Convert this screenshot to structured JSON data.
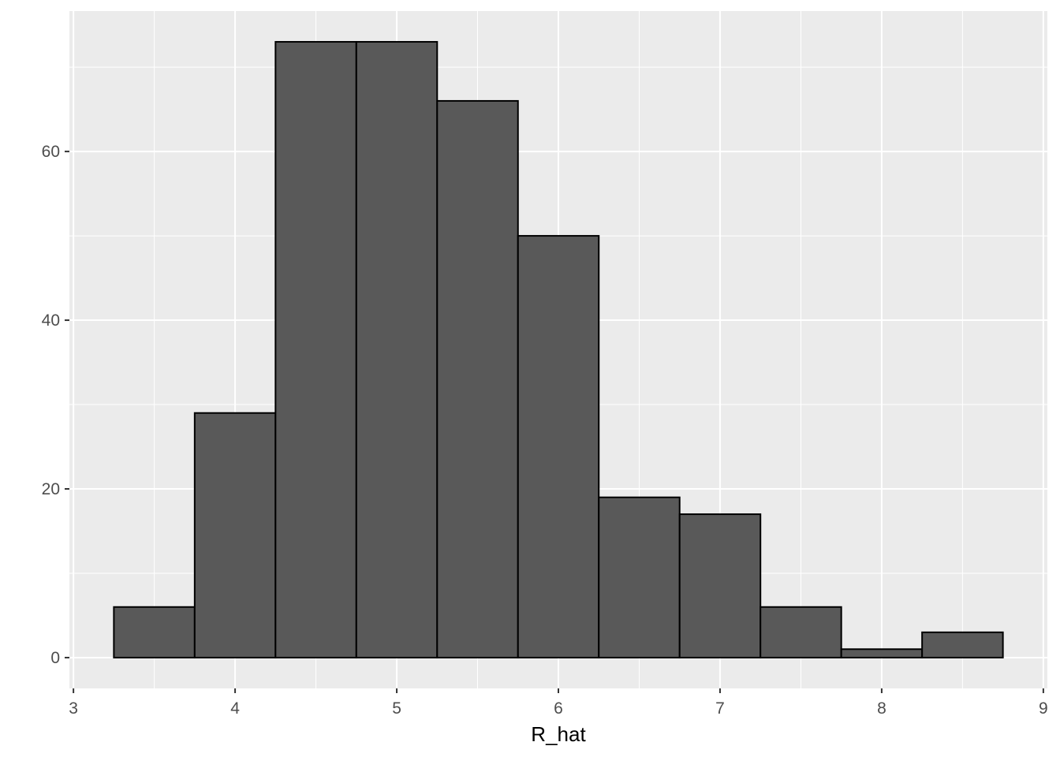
{
  "chart_data": {
    "type": "histogram",
    "x_label": "R_hat",
    "bins": [
      3.25,
      3.75,
      4.25,
      4.75,
      5.25,
      5.75,
      6.25,
      6.75,
      7.25,
      7.75,
      8.25,
      8.75
    ],
    "values": [
      6,
      29,
      73,
      73,
      66,
      50,
      19,
      17,
      6,
      1,
      3
    ],
    "color": "#595959",
    "edge_color": "#000000",
    "xlim": [
      2.975,
      9.025
    ],
    "xticks": [
      3,
      4,
      5,
      6,
      7,
      8,
      9
    ],
    "xminor": [
      3.5,
      4.5,
      5.5,
      6.5,
      7.5,
      8.5
    ],
    "ylim": [
      -3.65,
      76.65
    ],
    "yticks": [
      0,
      20,
      40,
      60
    ],
    "yminor": [
      10,
      30,
      50,
      70
    ],
    "grid": true
  }
}
